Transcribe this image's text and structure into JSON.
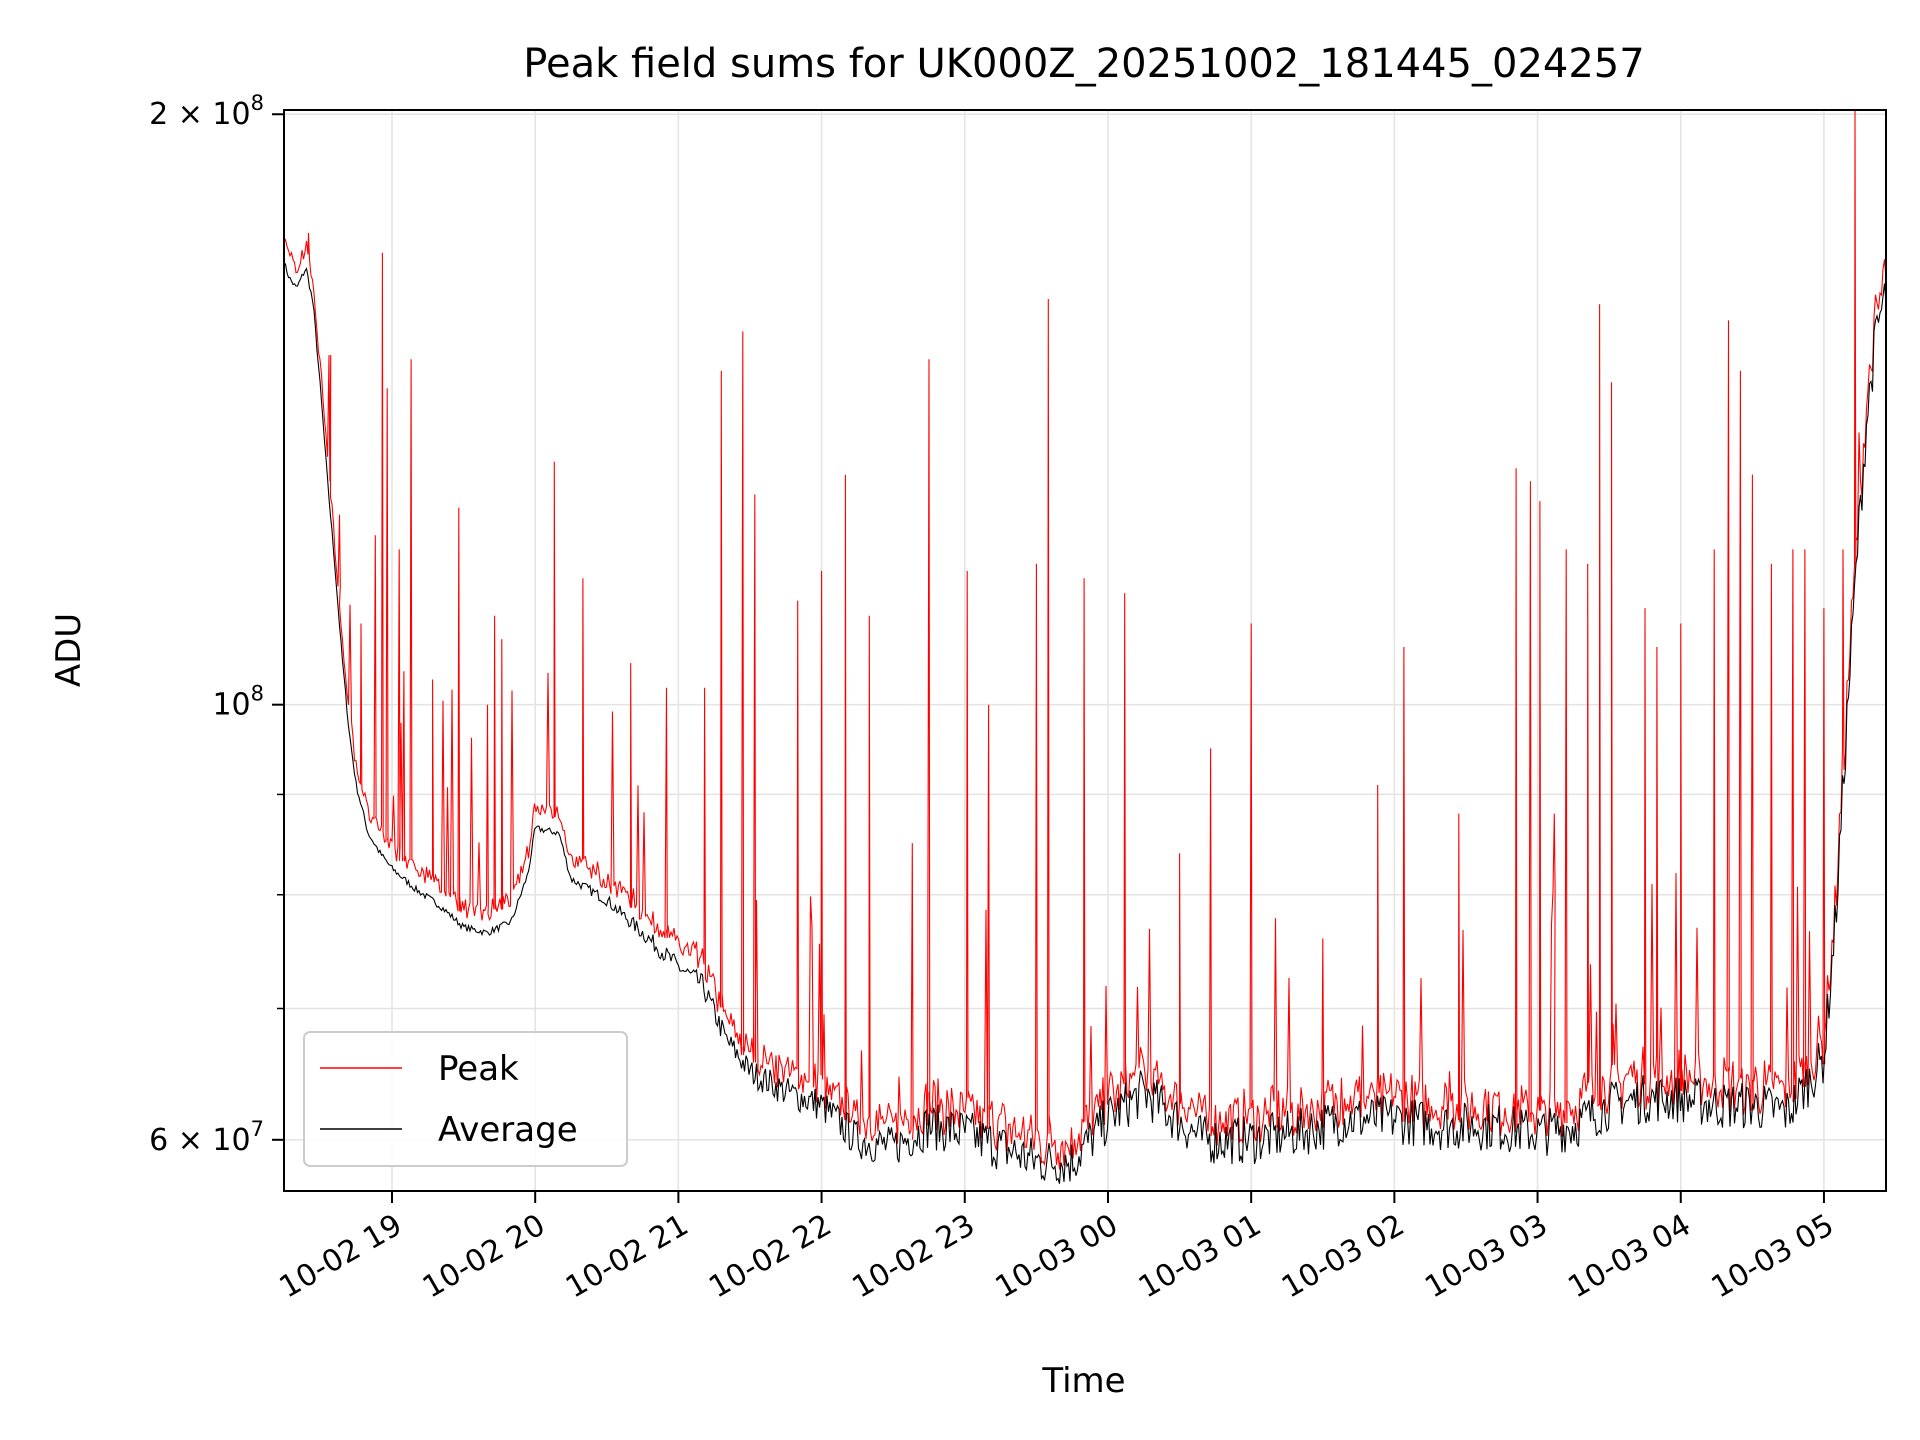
{
  "chart_data": {
    "type": "line",
    "title": "Peak field sums for UK000Z_20251002_181445_024257",
    "xlabel": "Time",
    "ylabel": "ADU",
    "y_scale": "log",
    "ylim": [
      56500000,
      201000000
    ],
    "xlim": [
      "2025-10-02T18:14:45",
      "2025-10-03T05:26:00"
    ],
    "grid": true,
    "legend_position": "lower left",
    "x_ticks": [
      {
        "t": "2025-10-02T19:00",
        "label": "10-02 19"
      },
      {
        "t": "2025-10-02T20:00",
        "label": "10-02 20"
      },
      {
        "t": "2025-10-02T21:00",
        "label": "10-02 21"
      },
      {
        "t": "2025-10-02T22:00",
        "label": "10-02 22"
      },
      {
        "t": "2025-10-02T23:00",
        "label": "10-02 23"
      },
      {
        "t": "2025-10-03T00:00",
        "label": "10-03 00"
      },
      {
        "t": "2025-10-03T01:00",
        "label": "10-03 01"
      },
      {
        "t": "2025-10-03T02:00",
        "label": "10-03 02"
      },
      {
        "t": "2025-10-03T03:00",
        "label": "10-03 03"
      },
      {
        "t": "2025-10-03T04:00",
        "label": "10-03 04"
      },
      {
        "t": "2025-10-03T05:00",
        "label": "10-03 05"
      }
    ],
    "y_major_ticks": [
      {
        "value": 60000000,
        "mantissa": "6",
        "exponent": "7"
      },
      {
        "value": 100000000,
        "mantissa": "",
        "exponent": "8"
      },
      {
        "value": 200000000,
        "mantissa": "2",
        "exponent": "8"
      }
    ],
    "y_minor_ticks": [
      70000000,
      80000000,
      90000000
    ],
    "series": [
      {
        "name": "Average",
        "color": "#000000",
        "points": [
          [
            "2025-10-02T18:14:45",
            168000000
          ],
          [
            "2025-10-02T18:17",
            165000000
          ],
          [
            "2025-10-02T18:20",
            163000000
          ],
          [
            "2025-10-02T18:24",
            167000000
          ],
          [
            "2025-10-02T18:27",
            160000000
          ],
          [
            "2025-10-02T18:30",
            145000000
          ],
          [
            "2025-10-02T18:33",
            130000000
          ],
          [
            "2025-10-02T18:36",
            118000000
          ],
          [
            "2025-10-02T18:39",
            106000000
          ],
          [
            "2025-10-02T18:42",
            97000000
          ],
          [
            "2025-10-02T18:45",
            91000000
          ],
          [
            "2025-10-02T18:50",
            86000000
          ],
          [
            "2025-10-02T18:55",
            84000000
          ],
          [
            "2025-10-02T19:00",
            82500000
          ],
          [
            "2025-10-02T19:10",
            80500000
          ],
          [
            "2025-10-02T19:20",
            79000000
          ],
          [
            "2025-10-02T19:30",
            77000000
          ],
          [
            "2025-10-02T19:40",
            76500000
          ],
          [
            "2025-10-02T19:50",
            77500000
          ],
          [
            "2025-10-02T19:57",
            82000000
          ],
          [
            "2025-10-02T20:00",
            86500000
          ],
          [
            "2025-10-02T20:10",
            86000000
          ],
          [
            "2025-10-02T20:15",
            81500000
          ],
          [
            "2025-10-02T20:30",
            79500000
          ],
          [
            "2025-10-02T20:45",
            76500000
          ],
          [
            "2025-10-02T21:00",
            73500000
          ],
          [
            "2025-10-02T21:10",
            72000000
          ],
          [
            "2025-10-02T21:20",
            67500000
          ],
          [
            "2025-10-02T21:30",
            65000000
          ],
          [
            "2025-10-02T21:45",
            63500000
          ],
          [
            "2025-10-02T22:00",
            62500000
          ],
          [
            "2025-10-02T22:15",
            60000000
          ],
          [
            "2025-10-02T22:30",
            59500000
          ],
          [
            "2025-10-02T22:45",
            61000000
          ],
          [
            "2025-10-02T23:00",
            60500000
          ],
          [
            "2025-10-02T23:15",
            59500000
          ],
          [
            "2025-10-02T23:30",
            58500000
          ],
          [
            "2025-10-02T23:45",
            58500000
          ],
          [
            "2025-10-03T00:00",
            61500000
          ],
          [
            "2025-10-03T00:15",
            63500000
          ],
          [
            "2025-10-03T00:25",
            62000000
          ],
          [
            "2025-10-03T00:40",
            60000000
          ],
          [
            "2025-10-03T01:00",
            60000000
          ],
          [
            "2025-10-03T01:20",
            60500000
          ],
          [
            "2025-10-03T01:40",
            61500000
          ],
          [
            "2025-10-03T02:00",
            61500000
          ],
          [
            "2025-10-03T02:20",
            61000000
          ],
          [
            "2025-10-03T02:40",
            61000000
          ],
          [
            "2025-10-03T03:00",
            60500000
          ],
          [
            "2025-10-03T03:15",
            61000000
          ],
          [
            "2025-10-03T03:30",
            62500000
          ],
          [
            "2025-10-03T03:45",
            63000000
          ],
          [
            "2025-10-03T04:00",
            63000000
          ],
          [
            "2025-10-03T04:15",
            62500000
          ],
          [
            "2025-10-03T04:30",
            62500000
          ],
          [
            "2025-10-03T04:45",
            62000000
          ],
          [
            "2025-10-03T05:00",
            66000000
          ],
          [
            "2025-10-03T05:05",
            78000000
          ],
          [
            "2025-10-03T05:10",
            100000000
          ],
          [
            "2025-10-03T05:14",
            120000000
          ],
          [
            "2025-10-03T05:18",
            140000000
          ],
          [
            "2025-10-03T05:22",
            155000000
          ],
          [
            "2025-10-03T05:26",
            162000000
          ]
        ]
      },
      {
        "name": "Peak",
        "color": "#ff0000",
        "spikes": [
          [
            "2025-10-02T18:25",
            174000000
          ],
          [
            "2025-10-02T18:34",
            130000000
          ],
          [
            "2025-10-02T18:38",
            125000000
          ],
          [
            "2025-10-02T18:47",
            110000000
          ],
          [
            "2025-10-02T18:53",
            122000000
          ],
          [
            "2025-10-02T18:56",
            170000000
          ],
          [
            "2025-10-02T18:58",
            145000000
          ],
          [
            "2025-10-02T19:03",
            120000000
          ],
          [
            "2025-10-02T19:05",
            104000000
          ],
          [
            "2025-10-02T19:08",
            150000000
          ],
          [
            "2025-10-02T19:17",
            103000000
          ],
          [
            "2025-10-02T19:28",
            126000000
          ],
          [
            "2025-10-02T19:40",
            100000000
          ],
          [
            "2025-10-02T19:43",
            111000000
          ],
          [
            "2025-10-02T19:46",
            108000000
          ],
          [
            "2025-10-02T20:08",
            133000000
          ],
          [
            "2025-10-02T20:20",
            116000000
          ],
          [
            "2025-10-02T20:40",
            105000000
          ],
          [
            "2025-10-02T20:55",
            102000000
          ],
          [
            "2025-10-02T21:11",
            102000000
          ],
          [
            "2025-10-02T21:18",
            148000000
          ],
          [
            "2025-10-02T21:27",
            155000000
          ],
          [
            "2025-10-02T21:32",
            128000000
          ],
          [
            "2025-10-02T21:50",
            113000000
          ],
          [
            "2025-10-02T22:00",
            117000000
          ],
          [
            "2025-10-02T22:10",
            131000000
          ],
          [
            "2025-10-02T22:20",
            111000000
          ],
          [
            "2025-10-02T22:38",
            85000000
          ],
          [
            "2025-10-02T22:45",
            150000000
          ],
          [
            "2025-10-02T23:01",
            117000000
          ],
          [
            "2025-10-02T23:10",
            100000000
          ],
          [
            "2025-10-02T23:30",
            118000000
          ],
          [
            "2025-10-02T23:35",
            161000000
          ],
          [
            "2025-10-02T23:50",
            116000000
          ],
          [
            "2025-10-03T00:07",
            114000000
          ],
          [
            "2025-10-03T00:30",
            84000000
          ],
          [
            "2025-10-03T00:43",
            95000000
          ],
          [
            "2025-10-03T01:00",
            110000000
          ],
          [
            "2025-10-03T01:30",
            76000000
          ],
          [
            "2025-10-03T01:53",
            91000000
          ],
          [
            "2025-10-03T02:04",
            107000000
          ],
          [
            "2025-10-03T02:27",
            88000000
          ],
          [
            "2025-10-03T02:51",
            132000000
          ],
          [
            "2025-10-03T02:57",
            130000000
          ],
          [
            "2025-10-03T03:01",
            127000000
          ],
          [
            "2025-10-03T03:07",
            88000000
          ],
          [
            "2025-10-03T03:12",
            120000000
          ],
          [
            "2025-10-03T03:21",
            118000000
          ],
          [
            "2025-10-03T03:26",
            160000000
          ],
          [
            "2025-10-03T03:31",
            146000000
          ],
          [
            "2025-10-03T03:45",
            112000000
          ],
          [
            "2025-10-03T03:50",
            107000000
          ],
          [
            "2025-10-03T04:00",
            110000000
          ],
          [
            "2025-10-03T04:14",
            120000000
          ],
          [
            "2025-10-03T04:20",
            157000000
          ],
          [
            "2025-10-03T04:25",
            148000000
          ],
          [
            "2025-10-03T04:30",
            131000000
          ],
          [
            "2025-10-03T04:38",
            118000000
          ],
          [
            "2025-10-03T04:47",
            120000000
          ],
          [
            "2025-10-03T04:52",
            120000000
          ],
          [
            "2025-10-03T05:00",
            112000000
          ],
          [
            "2025-10-03T05:08",
            120000000
          ],
          [
            "2025-10-03T05:13",
            201000000
          ]
        ]
      }
    ]
  }
}
